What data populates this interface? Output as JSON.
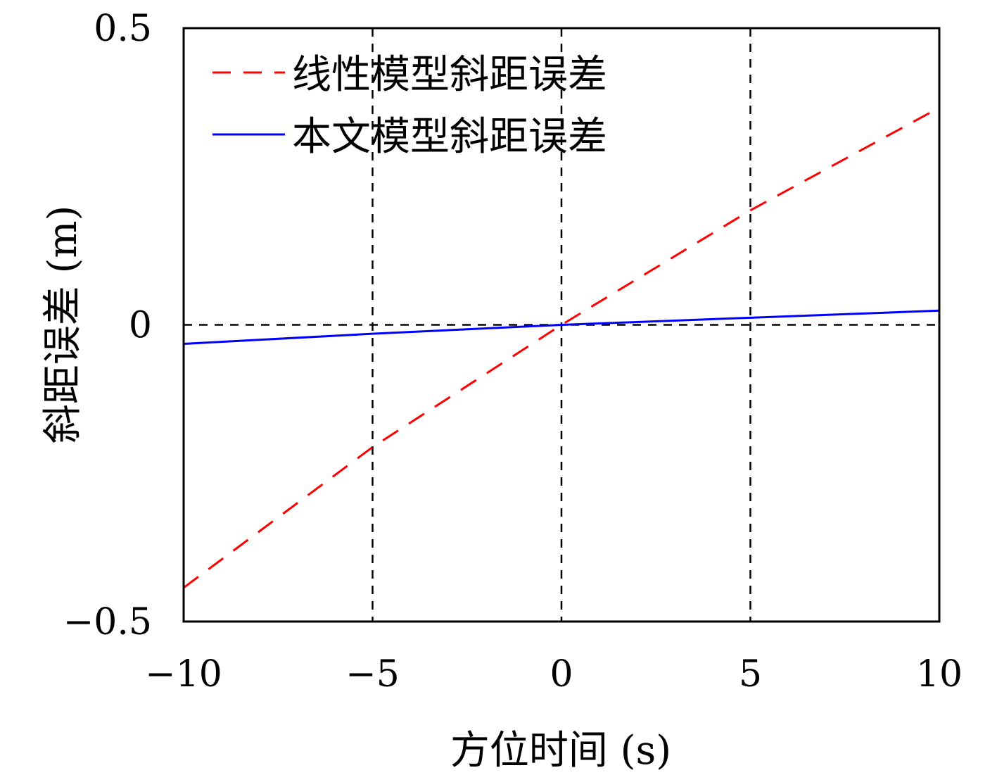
{
  "chart_data": {
    "type": "line",
    "title": "",
    "xlabel": "方位时间 (s)",
    "ylabel": "斜距误差 (m)",
    "xlim": [
      -10,
      10
    ],
    "ylim": [
      -0.5,
      0.5
    ],
    "x_ticks": [
      -10,
      -5,
      0,
      5,
      10
    ],
    "x_tick_labels": [
      "−10",
      "−5",
      "0",
      "5",
      "10"
    ],
    "y_ticks": [
      -0.5,
      0,
      0.5
    ],
    "y_tick_labels": [
      "−0.5",
      "0",
      "0.5"
    ],
    "grid": {
      "x": [
        -5,
        0,
        5
      ],
      "y": [
        0
      ],
      "style": "dashed"
    },
    "legend_position": "top-left",
    "series": [
      {
        "name": "线性模型斜距误差",
        "color": "#ff0000",
        "style": "dashed",
        "x": [
          -10,
          -5,
          0,
          5,
          10
        ],
        "y": [
          -0.443,
          -0.206,
          0.0,
          0.193,
          0.366
        ]
      },
      {
        "name": "本文模型斜距误差",
        "color": "#0000ff",
        "style": "solid",
        "x": [
          -10,
          -5,
          0,
          5,
          10
        ],
        "y": [
          -0.032,
          -0.015,
          0.0,
          0.012,
          0.024
        ]
      }
    ]
  }
}
